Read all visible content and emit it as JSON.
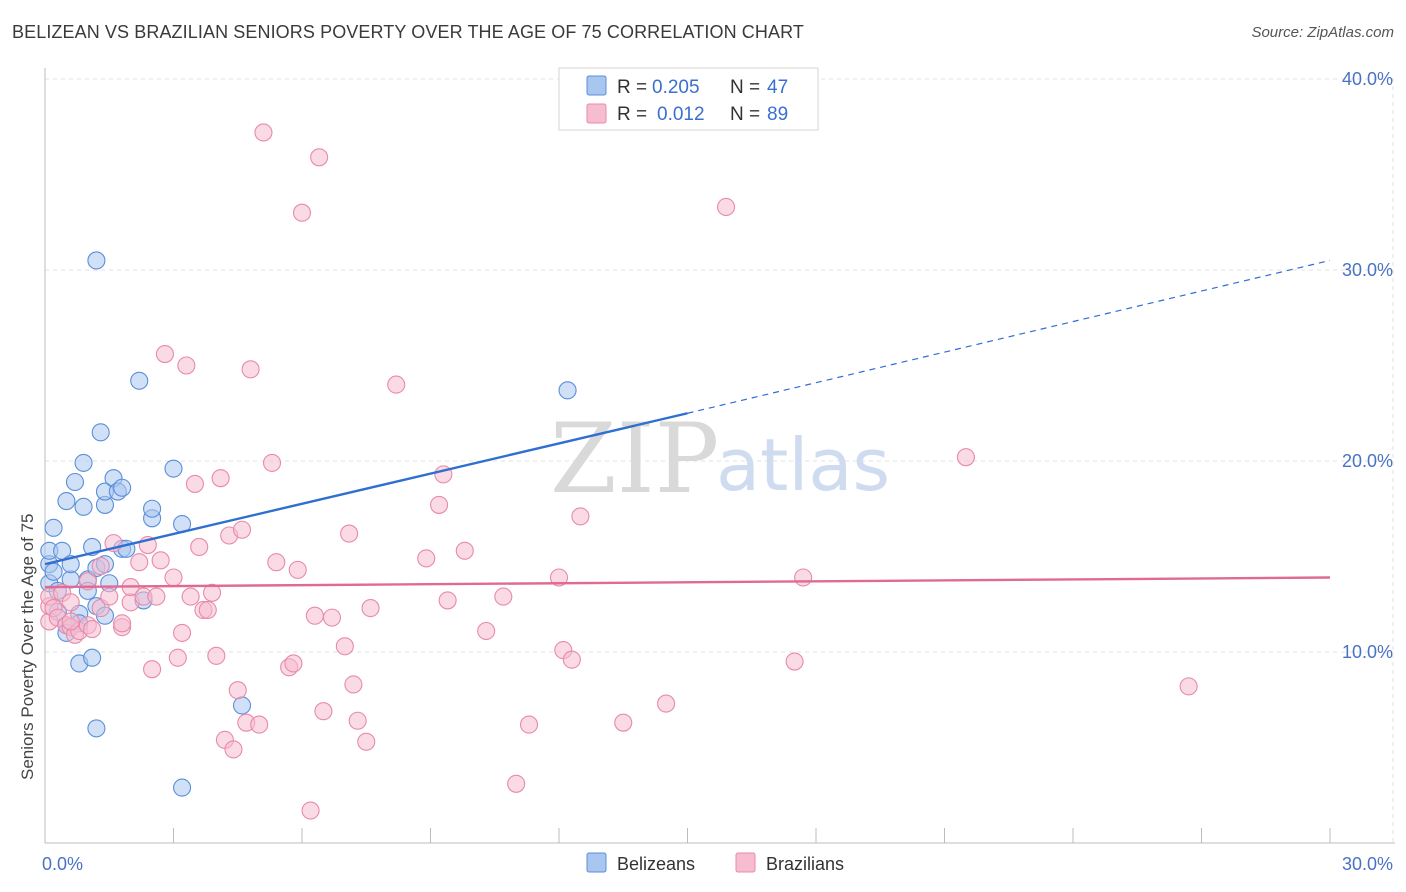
{
  "header": {
    "title": "BELIZEAN VS BRAZILIAN SENIORS POVERTY OVER THE AGE OF 75 CORRELATION CHART",
    "source": "Source: ZipAtlas.com"
  },
  "watermark": {
    "zip": "ZIP",
    "atlas": "atlas"
  },
  "legend": {
    "r_label": "R =",
    "n_label": "N =",
    "entries": [
      {
        "r": "0.205",
        "n": "47"
      },
      {
        "r": "0.012",
        "n": "89"
      }
    ]
  },
  "colors": {
    "belizeans_fill": "#a9c6f0",
    "belizeans_stroke": "#5b8fd8",
    "belizeans_line": "#2f6fd0",
    "brazilians_fill": "#f6bcd0",
    "brazilians_stroke": "#e88aaa",
    "brazilians_line": "#e06a95"
  },
  "chart_data": {
    "type": "scatter",
    "title": "BELIZEAN VS BRAZILIAN SENIORS POVERTY OVER THE AGE OF 75 CORRELATION CHART",
    "ylabel": "Seniors Poverty Over the Age of 75",
    "xlabel": "",
    "xlim": [
      0,
      30
    ],
    "ylim": [
      0,
      40
    ],
    "x_tick_labels": [
      "0.0%",
      "30.0%"
    ],
    "y_ticks": [
      10,
      20,
      30,
      40
    ],
    "y_tick_labels": [
      "10.0%",
      "20.0%",
      "30.0%",
      "40.0%"
    ],
    "grid": true,
    "legend_position": "top-center",
    "series": [
      {
        "name": "Belizeans",
        "r": 0.205,
        "n": 47,
        "trend": {
          "x0": 0.0,
          "y0": 14.6,
          "x1": 15.0,
          "y1": 22.5,
          "dash_to_x": 30.0,
          "dash_to_y": 30.5
        },
        "points": [
          [
            0.1,
            14.6
          ],
          [
            0.1,
            13.6
          ],
          [
            0.1,
            15.3
          ],
          [
            0.2,
            16.5
          ],
          [
            0.2,
            14.2
          ],
          [
            0.3,
            13.2
          ],
          [
            0.3,
            12.1
          ],
          [
            0.4,
            15.3
          ],
          [
            0.5,
            17.9
          ],
          [
            0.5,
            11.4
          ],
          [
            0.5,
            11.0
          ],
          [
            0.6,
            13.8
          ],
          [
            0.6,
            14.6
          ],
          [
            0.7,
            18.9
          ],
          [
            0.8,
            12.0
          ],
          [
            0.8,
            11.5
          ],
          [
            0.8,
            9.4
          ],
          [
            0.9,
            19.9
          ],
          [
            0.9,
            17.6
          ],
          [
            1.0,
            13.8
          ],
          [
            1.0,
            13.2
          ],
          [
            1.1,
            15.5
          ],
          [
            1.1,
            9.7
          ],
          [
            1.2,
            14.4
          ],
          [
            1.2,
            12.4
          ],
          [
            1.2,
            6.0
          ],
          [
            1.2,
            30.5
          ],
          [
            1.3,
            21.5
          ],
          [
            1.4,
            14.6
          ],
          [
            1.4,
            11.9
          ],
          [
            1.4,
            17.7
          ],
          [
            1.4,
            18.4
          ],
          [
            1.5,
            13.6
          ],
          [
            1.6,
            19.1
          ],
          [
            1.7,
            18.4
          ],
          [
            1.8,
            18.6
          ],
          [
            1.8,
            15.4
          ],
          [
            1.9,
            15.4
          ],
          [
            2.2,
            24.2
          ],
          [
            2.3,
            12.7
          ],
          [
            2.5,
            17.0
          ],
          [
            2.5,
            17.5
          ],
          [
            3.0,
            19.6
          ],
          [
            3.2,
            16.7
          ],
          [
            3.2,
            2.9
          ],
          [
            4.6,
            7.2
          ],
          [
            12.2,
            23.7
          ]
        ]
      },
      {
        "name": "Brazilians",
        "r": 0.012,
        "n": 89,
        "trend": {
          "x0": 0.0,
          "y0": 13.4,
          "x1": 30.0,
          "y1": 13.9
        },
        "points": [
          [
            0.1,
            11.6
          ],
          [
            0.1,
            12.4
          ],
          [
            0.1,
            12.9
          ],
          [
            0.2,
            12.3
          ],
          [
            0.3,
            11.8
          ],
          [
            0.4,
            13.1
          ],
          [
            0.5,
            11.4
          ],
          [
            0.6,
            11.3
          ],
          [
            0.6,
            12.6
          ],
          [
            0.7,
            10.9
          ],
          [
            0.8,
            11.1
          ],
          [
            1.0,
            11.4
          ],
          [
            1.0,
            13.7
          ],
          [
            1.1,
            11.2
          ],
          [
            1.3,
            12.3
          ],
          [
            1.3,
            14.5
          ],
          [
            1.5,
            12.9
          ],
          [
            1.6,
            15.7
          ],
          [
            1.8,
            11.3
          ],
          [
            1.8,
            11.5
          ],
          [
            2.0,
            12.6
          ],
          [
            2.0,
            13.4
          ],
          [
            2.2,
            14.7
          ],
          [
            2.3,
            12.9
          ],
          [
            2.4,
            15.6
          ],
          [
            2.5,
            9.1
          ],
          [
            2.6,
            12.9
          ],
          [
            2.7,
            14.8
          ],
          [
            2.8,
            25.6
          ],
          [
            3.0,
            13.9
          ],
          [
            3.1,
            9.7
          ],
          [
            3.2,
            11.0
          ],
          [
            3.3,
            25.0
          ],
          [
            3.4,
            12.9
          ],
          [
            3.5,
            18.8
          ],
          [
            3.6,
            15.5
          ],
          [
            3.7,
            12.2
          ],
          [
            3.8,
            12.2
          ],
          [
            3.9,
            13.1
          ],
          [
            4.0,
            9.8
          ],
          [
            4.1,
            19.1
          ],
          [
            4.2,
            5.4
          ],
          [
            4.3,
            16.1
          ],
          [
            4.4,
            4.9
          ],
          [
            4.5,
            8.0
          ],
          [
            4.6,
            16.4
          ],
          [
            4.7,
            6.3
          ],
          [
            4.8,
            24.8
          ],
          [
            5.0,
            6.2
          ],
          [
            5.1,
            37.2
          ],
          [
            5.3,
            19.9
          ],
          [
            5.4,
            14.7
          ],
          [
            5.7,
            9.2
          ],
          [
            5.8,
            9.4
          ],
          [
            5.9,
            14.3
          ],
          [
            6.0,
            33.0
          ],
          [
            6.2,
            1.7
          ],
          [
            6.3,
            11.9
          ],
          [
            6.4,
            35.9
          ],
          [
            6.5,
            6.9
          ],
          [
            6.7,
            11.8
          ],
          [
            7.0,
            10.3
          ],
          [
            7.1,
            16.2
          ],
          [
            7.2,
            8.3
          ],
          [
            7.3,
            6.4
          ],
          [
            7.5,
            5.3
          ],
          [
            7.6,
            12.3
          ],
          [
            8.2,
            24.0
          ],
          [
            8.9,
            14.9
          ],
          [
            9.2,
            17.7
          ],
          [
            9.3,
            19.3
          ],
          [
            9.4,
            12.7
          ],
          [
            9.8,
            15.3
          ],
          [
            10.3,
            11.1
          ],
          [
            10.7,
            12.9
          ],
          [
            11.0,
            3.1
          ],
          [
            11.3,
            6.2
          ],
          [
            12.0,
            13.9
          ],
          [
            12.1,
            10.1
          ],
          [
            12.3,
            9.6
          ],
          [
            12.5,
            17.1
          ],
          [
            13.5,
            6.3
          ],
          [
            14.5,
            7.3
          ],
          [
            15.9,
            33.3
          ],
          [
            17.5,
            9.5
          ],
          [
            17.7,
            13.9
          ],
          [
            21.5,
            20.2
          ],
          [
            26.7,
            8.2
          ],
          [
            0.6,
            11.6
          ]
        ]
      }
    ]
  }
}
